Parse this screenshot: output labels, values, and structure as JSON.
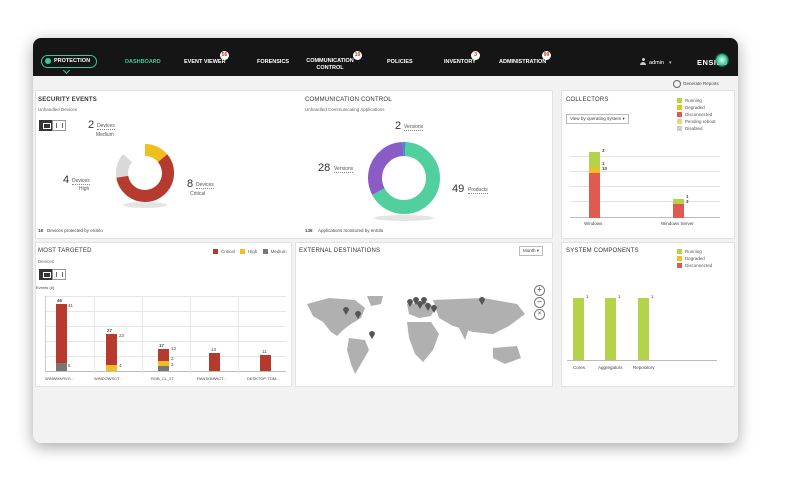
{
  "header": {
    "protection_label": "PROTECTION",
    "nav": [
      {
        "label": "DASHBOARD",
        "badge": ""
      },
      {
        "label": "EVENT VIEWER",
        "badge": "56"
      },
      {
        "label": "FORENSICS",
        "badge": ""
      },
      {
        "label": "COMMUNICATION CONTROL",
        "badge": "10"
      },
      {
        "label": "POLICIES",
        "badge": ""
      },
      {
        "label": "INVENTORY",
        "badge": "3"
      },
      {
        "label": "ADMINISTRATION",
        "badge": "99"
      }
    ],
    "user": "admin",
    "brand": "ENSILO",
    "generate_reports": "Generate Reports",
    "accent": "#35c99b"
  },
  "security_events": {
    "title": "SECURITY EVENTS",
    "subtitle": "Unhandled Devices",
    "medium_count": "2",
    "medium_unit": "Devices",
    "medium_label": "Medium",
    "high_count": "4",
    "high_unit": "Devices",
    "high_label": "High",
    "critical_count": "8",
    "critical_unit": "Devices",
    "critical_label": "Critical",
    "footer_count": "18",
    "footer_text": "Devices protected by enSilo",
    "colors": {
      "critical": "#b63a2e",
      "high": "#f0be1e",
      "medium": "#d9d9d9"
    }
  },
  "communication_control": {
    "title": "COMMUNICATION CONTROL",
    "subtitle": "Unhandled Communicating Applications",
    "versions_top_count": "2",
    "versions_top_unit": "Versions",
    "versions_left_count": "28",
    "versions_left_unit": "Versions",
    "products_count": "49",
    "products_unit": "Products",
    "footer_count": "136",
    "footer_text": "Applications monitored by enSilo"
  },
  "collectors": {
    "title": "COLLECTORS",
    "dropdown": "View by operating system",
    "legend": [
      "Running",
      "Degraded",
      "Disconnected",
      "Pending reboot",
      "Disabled"
    ],
    "legend_colors": [
      "#b4d34b",
      "#f0be1e",
      "#e05a4f",
      "#f3d37a",
      "#cccccc"
    ],
    "categories": [
      "Windows",
      "Windows Server"
    ],
    "windows_values": [
      "3",
      "1",
      "10"
    ],
    "server_values": [
      "1",
      "3"
    ]
  },
  "most_targeted": {
    "title": "MOST TARGETED",
    "subtitle": "Devices",
    "axis_label": "Events (#)",
    "legend": [
      "Critical",
      "High",
      "Medium"
    ],
    "categories": [
      "WINWHKRVG...",
      "WINDOWSCT...",
      "ROB_CL_27",
      "RANSOMWCT...",
      "DESKTOP-TOM..."
    ],
    "bar_labels": [
      [
        "46",
        "41",
        "5"
      ],
      [
        "27",
        "23",
        "4"
      ],
      [
        "17",
        "12",
        "2",
        "3"
      ],
      [
        "13"
      ],
      [
        "11"
      ]
    ]
  },
  "external_destinations": {
    "title": "EXTERNAL DESTINATIONS",
    "period": "Month"
  },
  "system_components": {
    "title": "SYSTEM COMPONENTS",
    "legend": [
      "Running",
      "Degraded",
      "Disconnected"
    ],
    "categories": [
      "Cores",
      "Aggregators",
      "Repository"
    ],
    "values": [
      "1",
      "1",
      "1"
    ]
  }
}
